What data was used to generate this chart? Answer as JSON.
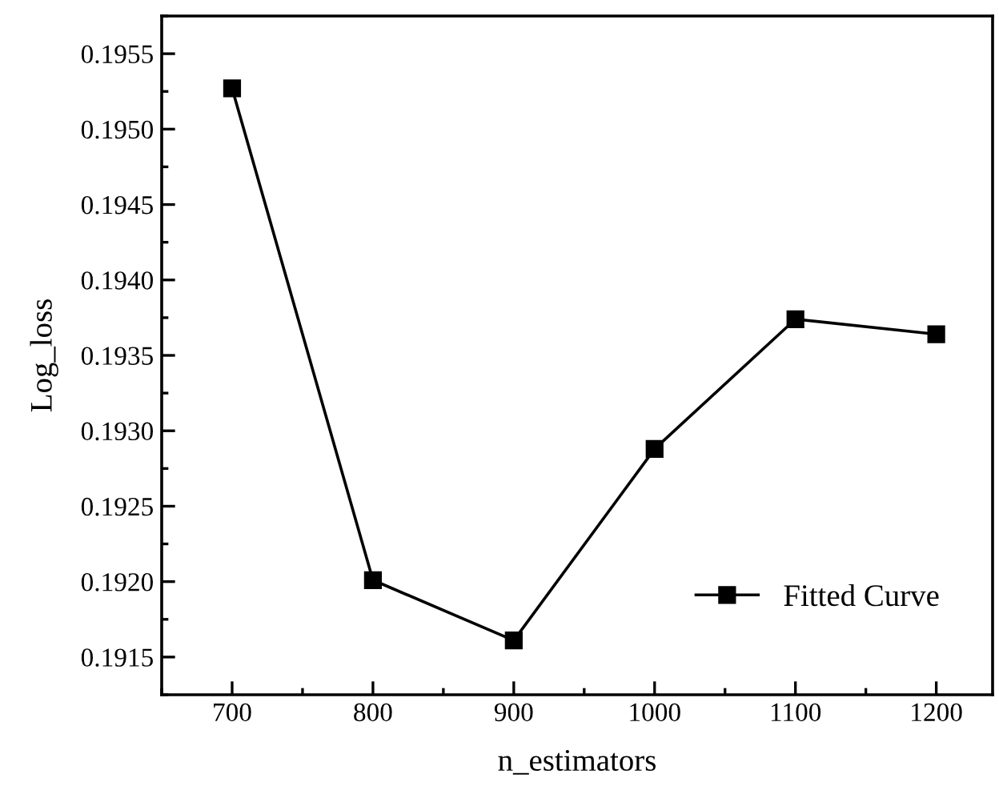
{
  "chart_data": {
    "type": "line",
    "xlabel": "n_estimators",
    "ylabel": "Log_loss",
    "x": [
      700,
      800,
      900,
      1000,
      1100,
      1200
    ],
    "series": [
      {
        "name": "Fitted Curve",
        "color": "#000000",
        "values": [
          0.19527,
          0.19201,
          0.19161,
          0.19288,
          0.19374,
          0.19364
        ]
      }
    ],
    "xlim": [
      650,
      1240
    ],
    "xticks": [
      700,
      800,
      900,
      1000,
      1100,
      1200
    ],
    "ylim": [
      0.19125,
      0.19575
    ],
    "yticks": [
      {
        "value": 0.1915,
        "label": "0.1915"
      },
      {
        "value": 0.192,
        "label": "0.1920"
      },
      {
        "value": 0.1925,
        "label": "0.1925"
      },
      {
        "value": 0.193,
        "label": "0.1930"
      },
      {
        "value": 0.1935,
        "label": "0.1935"
      },
      {
        "value": 0.194,
        "label": "0.1940"
      },
      {
        "value": 0.1945,
        "label": "0.1945"
      },
      {
        "value": 0.195,
        "label": "0.1950"
      },
      {
        "value": 0.1955,
        "label": "0.1955"
      }
    ],
    "marker": "square",
    "line_style": "solid",
    "legend": "bottom right",
    "grid": false
  }
}
